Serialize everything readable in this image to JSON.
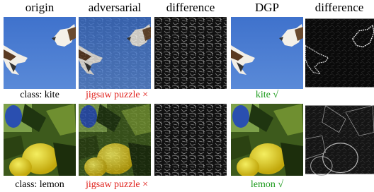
{
  "headers": [
    "origin",
    "adversarial",
    "difference",
    "DGP",
    "difference"
  ],
  "rows": [
    {
      "class_label": "class: kite",
      "adversarial_prediction": "jigsaw puzzle ×",
      "dgp_prediction": "kite √"
    },
    {
      "class_label": "class: lemon",
      "adversarial_prediction": "jigsaw puzzle ×",
      "dgp_prediction": "lemon √"
    }
  ]
}
